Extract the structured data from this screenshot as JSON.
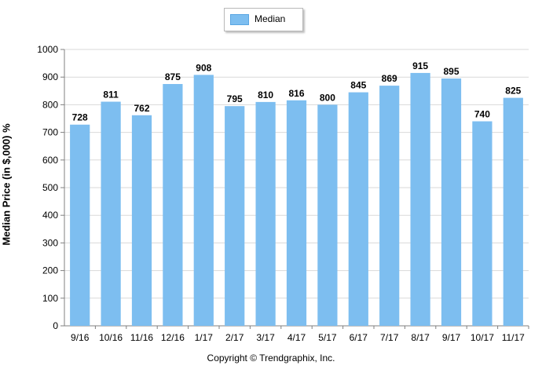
{
  "chart_data": {
    "type": "bar",
    "legend": {
      "entries": [
        "Median"
      ],
      "placement": "top-center"
    },
    "ylabel": "Median Price (in $,000) %",
    "ylim": [
      0,
      1000
    ],
    "yticks": [
      0,
      100,
      200,
      300,
      400,
      500,
      600,
      700,
      800,
      900,
      1000
    ],
    "grid": true,
    "categories": [
      "9/16",
      "10/16",
      "11/16",
      "12/16",
      "1/17",
      "2/17",
      "3/17",
      "4/17",
      "5/17",
      "6/17",
      "7/17",
      "8/17",
      "9/17",
      "10/17",
      "11/17"
    ],
    "series": [
      {
        "name": "Median",
        "color": "#7dbef0",
        "values": [
          728,
          811,
          762,
          875,
          908,
          795,
          810,
          816,
          800,
          845,
          869,
          915,
          895,
          740,
          825
        ]
      }
    ]
  },
  "footer": {
    "copyright": "Copyright © Trendgraphix, Inc."
  }
}
